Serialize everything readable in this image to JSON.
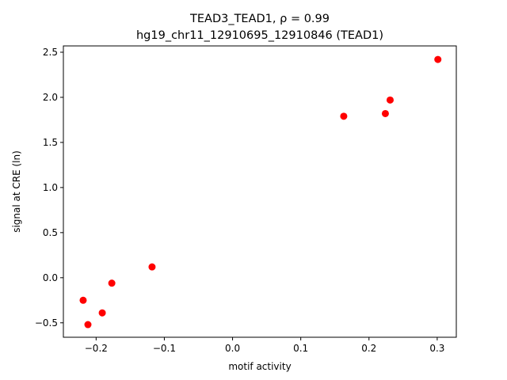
{
  "chart_data": {
    "type": "scatter",
    "title_line1": "TEAD3_TEAD1, ρ = 0.99",
    "title_line2": "hg19_chr11_12910695_12910846 (TEAD1)",
    "xlabel": "motif activity",
    "ylabel": "signal at CRE (ln)",
    "xlim": [
      -0.248,
      0.328
    ],
    "ylim": [
      -0.66,
      2.57
    ],
    "xticks": [
      -0.2,
      -0.1,
      0.0,
      0.1,
      0.2,
      0.3
    ],
    "xtick_labels": [
      "−0.2",
      "−0.1",
      "0.0",
      "0.1",
      "0.2",
      "0.3"
    ],
    "yticks": [
      -0.5,
      0.0,
      0.5,
      1.0,
      1.5,
      2.0,
      2.5
    ],
    "ytick_labels": [
      "−0.5",
      "0.0",
      "0.5",
      "1.0",
      "1.5",
      "2.0",
      "2.5"
    ],
    "grid": false,
    "marker_color": "#ff0000",
    "points": [
      {
        "x": -0.219,
        "y": -0.25
      },
      {
        "x": -0.212,
        "y": -0.52
      },
      {
        "x": -0.191,
        "y": -0.39
      },
      {
        "x": -0.177,
        "y": -0.06
      },
      {
        "x": -0.118,
        "y": 0.12
      },
      {
        "x": 0.163,
        "y": 1.79
      },
      {
        "x": 0.224,
        "y": 1.82
      },
      {
        "x": 0.231,
        "y": 1.97
      },
      {
        "x": 0.301,
        "y": 2.42
      }
    ]
  }
}
